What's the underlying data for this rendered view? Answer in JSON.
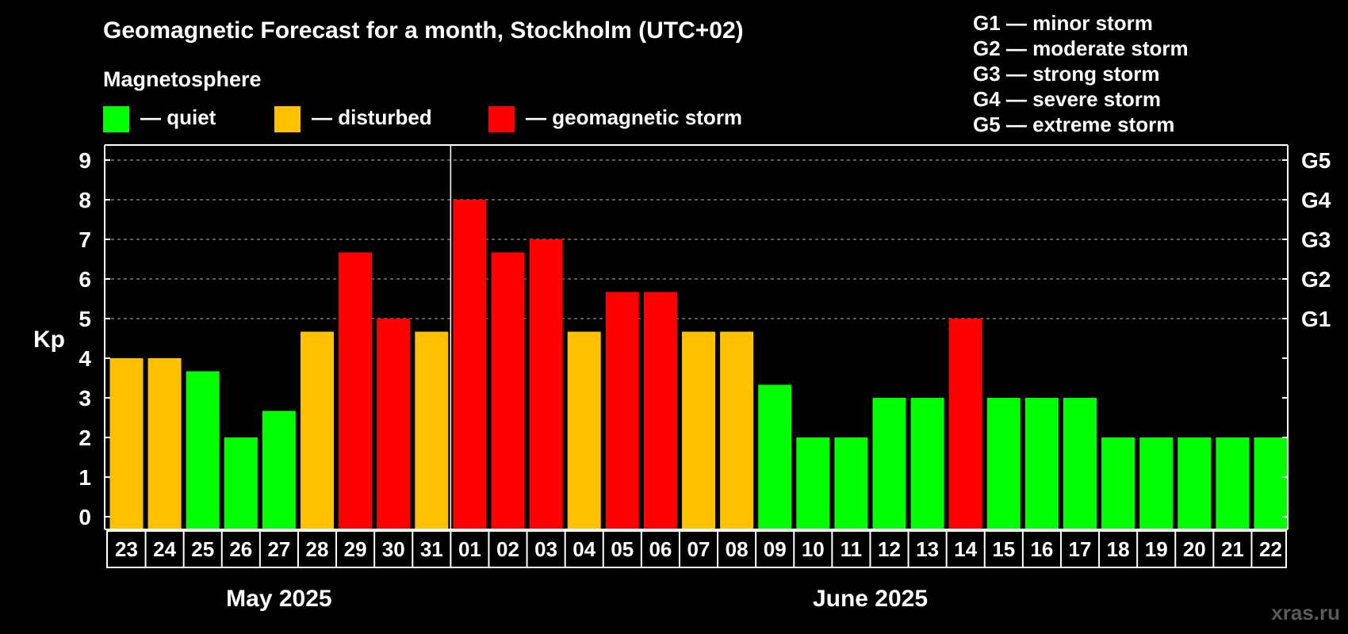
{
  "title": "Geomagnetic Forecast for a month, Stockholm (UTC+02)",
  "magnetosphere_heading": "Magnetosphere",
  "legend": [
    {
      "key": "quiet",
      "label": "— quiet",
      "color": "#00ff00"
    },
    {
      "key": "disturbed",
      "label": "— disturbed",
      "color": "#ffc000"
    },
    {
      "key": "storm",
      "label": "— geomagnetic storm",
      "color": "#ff0000"
    }
  ],
  "storm_scale": [
    "G1 — minor storm",
    "G2 — moderate storm",
    "G3 — strong storm",
    "G4 — severe storm",
    "G5 — extreme storm"
  ],
  "watermark": "xras.ru",
  "colors": {
    "quiet": "#00ff00",
    "disturbed": "#ffc000",
    "storm": "#ff0000",
    "background": "#000000",
    "axis": "#ffffff",
    "grid": "#8c8c8c"
  },
  "chart_data": {
    "type": "bar",
    "ylabel": "Kp",
    "ylim": [
      0,
      9
    ],
    "yticks": [
      "0",
      "1",
      "2",
      "3",
      "4",
      "5",
      "6",
      "7",
      "8",
      "9"
    ],
    "right_axis_labels": [
      {
        "kp": 5,
        "label": "G1"
      },
      {
        "kp": 6,
        "label": "G2"
      },
      {
        "kp": 7,
        "label": "G3"
      },
      {
        "kp": 8,
        "label": "G4"
      },
      {
        "kp": 9,
        "label": "G5"
      }
    ],
    "grid": "dashed horizontal at integer Kp 5-9",
    "months": [
      {
        "label": "May 2025",
        "first_index": 0,
        "last_index": 8
      },
      {
        "label": "June 2025",
        "first_index": 9,
        "last_index": 30
      }
    ],
    "categories": [
      "23",
      "24",
      "25",
      "26",
      "27",
      "28",
      "29",
      "30",
      "31",
      "01",
      "02",
      "03",
      "04",
      "05",
      "06",
      "07",
      "08",
      "09",
      "10",
      "11",
      "12",
      "13",
      "14",
      "15",
      "16",
      "17",
      "18",
      "19",
      "20",
      "21",
      "22"
    ],
    "values": [
      4,
      4,
      3.67,
      2,
      2.67,
      4.67,
      6.67,
      5,
      4.67,
      8,
      6.67,
      7,
      4.67,
      5.67,
      5.67,
      4.67,
      4.67,
      3.33,
      2,
      2,
      3,
      3,
      5,
      3,
      3,
      3,
      2,
      2,
      2,
      2,
      2
    ],
    "levels": [
      "disturbed",
      "disturbed",
      "quiet",
      "quiet",
      "quiet",
      "disturbed",
      "storm",
      "storm",
      "disturbed",
      "storm",
      "storm",
      "storm",
      "disturbed",
      "storm",
      "storm",
      "disturbed",
      "disturbed",
      "quiet",
      "quiet",
      "quiet",
      "quiet",
      "quiet",
      "storm",
      "quiet",
      "quiet",
      "quiet",
      "quiet",
      "quiet",
      "quiet",
      "quiet",
      "quiet"
    ]
  }
}
